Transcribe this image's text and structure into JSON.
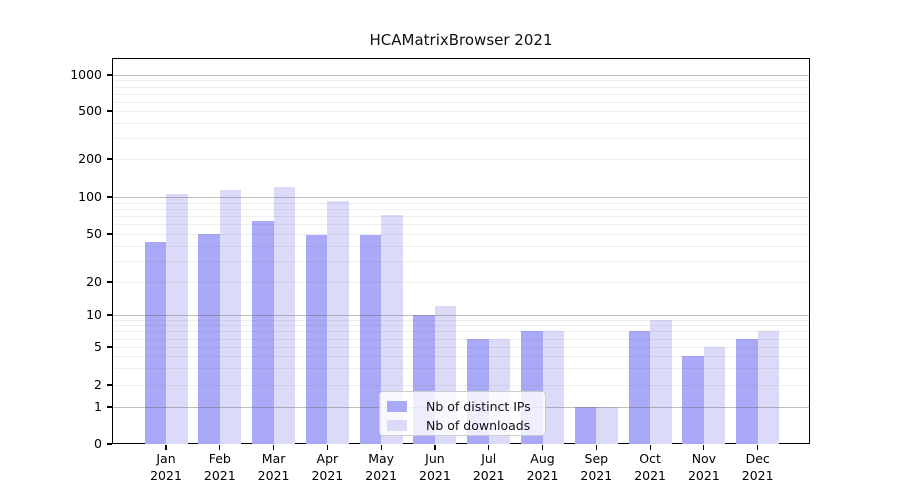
{
  "title": "HCAMatrixBrowser 2021",
  "chart_data": {
    "type": "bar",
    "title": "HCAMatrixBrowser 2021",
    "categories": [
      "Jan",
      "Feb",
      "Mar",
      "Apr",
      "May",
      "Jun",
      "Jul",
      "Aug",
      "Sep",
      "Oct",
      "Nov",
      "Dec"
    ],
    "category_year": "2021",
    "series": [
      {
        "name": "Nb of distinct IPs",
        "color": "#a9a9f7",
        "values": [
          43,
          50,
          64,
          49,
          49,
          10,
          6,
          7,
          1,
          7,
          4,
          6
        ]
      },
      {
        "name": "Nb of downloads",
        "color": "#dbdbf9",
        "values": [
          105,
          113,
          119,
          93,
          71,
          12,
          6,
          7,
          1,
          9,
          5,
          7
        ]
      }
    ],
    "yticks": [
      0,
      1,
      2,
      5,
      10,
      20,
      50,
      100,
      200,
      500,
      1000
    ],
    "y_scale": "symlog",
    "ylim": [
      0,
      1000
    ],
    "grid": "horizontal",
    "legend_position": "lower-center",
    "colors": {
      "major_grid": "#b0b0b0",
      "minor_grid": "#ebebeb",
      "axis": "#000000"
    }
  }
}
